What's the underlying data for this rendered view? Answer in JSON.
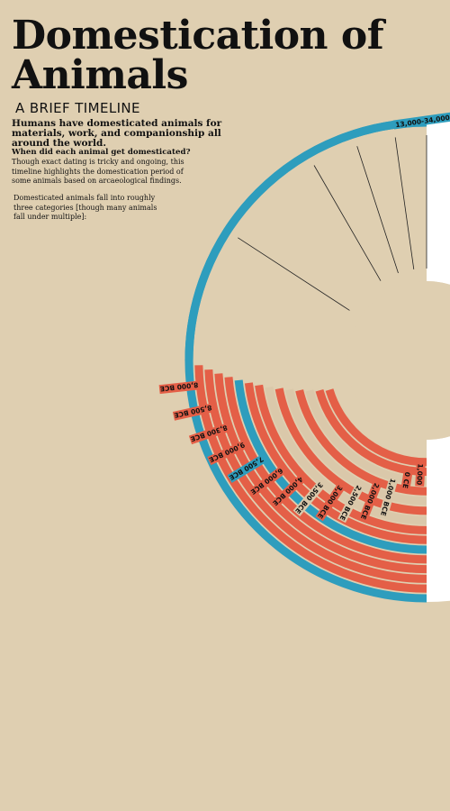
{
  "title": "Domestication of Animals",
  "subtitle": "A BRIEF TIMELINE",
  "intro": "Humans have domesticated animals for materials, work, and companionship all around the world.",
  "question": "When did each animal get domesticated?",
  "explanation": "Though exact dating is tricky and ongoing, this timeline highlights the domestication period of some animals based on arcaeological findings.",
  "categories_text": "Domesticated animals fall into roughly three categories [though many animals fall under multiple]:",
  "colors": {
    "background": "#dfcfb1",
    "blue": "#2e9dbd",
    "red": "#e45f47",
    "tan": "#dac8aa",
    "white": "#ffffff"
  },
  "chart_data": {
    "type": "radial-timeline",
    "arcs": [
      {
        "label": "13,000-34,000 BCE",
        "color": "blue"
      },
      {
        "label": "8,000 BCE",
        "color": "red"
      },
      {
        "label": "8,500 BCE",
        "color": "red"
      },
      {
        "label": "8,300 BCE",
        "color": "red"
      },
      {
        "label": "9,000 BCE",
        "color": "red"
      },
      {
        "label": "7,500 BCE",
        "color": "blue"
      },
      {
        "label": "6,000 BCE",
        "color": "red"
      },
      {
        "label": "4,000 BCE",
        "color": "red"
      },
      {
        "label": "3,500 BCE",
        "color": "tan"
      },
      {
        "label": "3,000 BCE",
        "color": "red"
      },
      {
        "label": "2,500 BCE",
        "color": "tan"
      },
      {
        "label": "2,000 BCE",
        "color": "red"
      },
      {
        "label": "1,000 BCE",
        "color": "tan"
      },
      {
        "label": "0 CE",
        "color": "red"
      },
      {
        "label": "1,000",
        "color": "red"
      }
    ]
  }
}
